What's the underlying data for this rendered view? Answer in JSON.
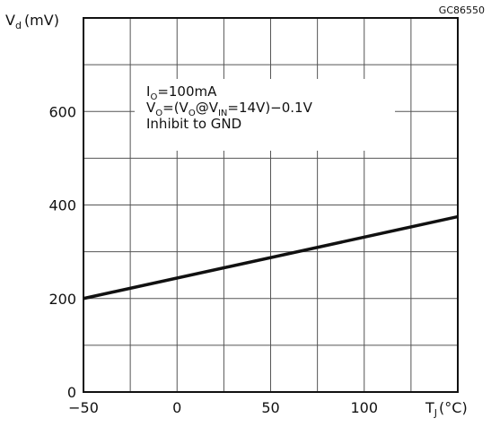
{
  "chart_data": {
    "type": "line",
    "figure_code": "GC86550",
    "ylabel": {
      "main": "V",
      "sub": "d",
      "unit": "(mV)"
    },
    "xlabel": {
      "main": "T",
      "sub": "J",
      "unit": "(°C)"
    },
    "xlim": [
      -50,
      150
    ],
    "ylim": [
      0,
      800
    ],
    "x_ticks": [
      -50,
      0,
      50,
      100
    ],
    "y_ticks": [
      0,
      200,
      400,
      600
    ],
    "x_grid": [
      -50,
      -25,
      0,
      25,
      50,
      75,
      100,
      125,
      150
    ],
    "y_grid": [
      0,
      100,
      200,
      300,
      400,
      500,
      600,
      700,
      800
    ],
    "grid": true,
    "annotation": [
      {
        "runs": [
          {
            "t": "I",
            "sub": false
          },
          {
            "t": "O",
            "sub": true
          },
          {
            "t": "=100mA",
            "sub": false
          }
        ]
      },
      {
        "runs": [
          {
            "t": "V",
            "sub": false
          },
          {
            "t": "O",
            "sub": true
          },
          {
            "t": "=(V",
            "sub": false
          },
          {
            "t": "O",
            "sub": true
          },
          {
            "t": "@V",
            "sub": false
          },
          {
            "t": "IN",
            "sub": true
          },
          {
            "t": "=14V)−0.1V",
            "sub": false
          }
        ]
      },
      {
        "runs": [
          {
            "t": "Inhibit to GND",
            "sub": false
          }
        ]
      }
    ],
    "series": [
      {
        "x": [
          -50,
          150
        ],
        "values": [
          200,
          375
        ],
        "color": "#111111"
      }
    ]
  }
}
